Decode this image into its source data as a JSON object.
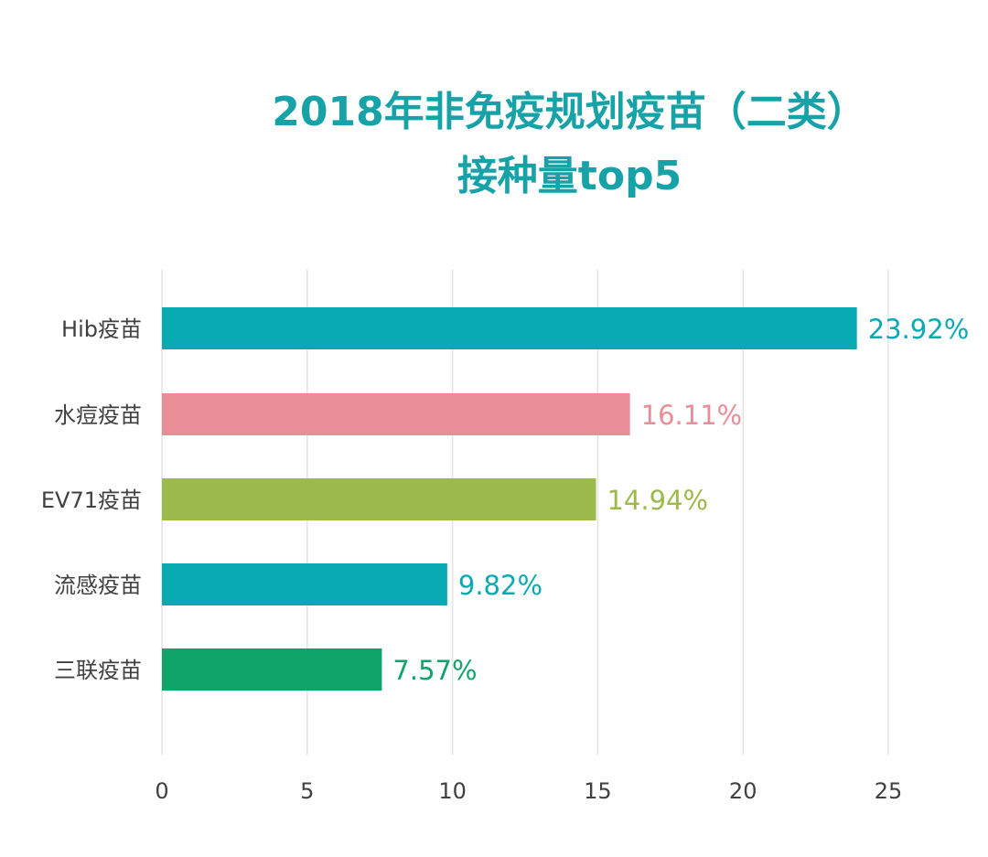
{
  "chart_data": {
    "type": "bar",
    "orientation": "horizontal",
    "title": "2018年非免疫规划疫苗（二类）",
    "subtitle": "接种量top5",
    "categories": [
      "Hib疫苗",
      "水痘疫苗",
      "EV71疫苗",
      "流感疫苗",
      "三联疫苗"
    ],
    "values": [
      23.92,
      16.11,
      14.94,
      9.82,
      7.57
    ],
    "value_labels": [
      "23.92%",
      "16.11%",
      "14.94%",
      "9.82%",
      "7.57%"
    ],
    "colors": [
      "#0aaab3",
      "#e98d96",
      "#9bba4b",
      "#0aaab3",
      "#10a468"
    ],
    "xlim": [
      0,
      25
    ],
    "xticks": [
      0,
      5,
      10,
      15,
      20,
      25
    ],
    "tick_labels": [
      "0",
      "5",
      "10",
      "15",
      "20",
      "25"
    ],
    "xlabel": "",
    "ylabel": "",
    "grid": "vertical",
    "legend": "none"
  },
  "colors": {
    "title": "#17a2a8",
    "grid": "#e3e3e3",
    "axis_text": "#404040"
  }
}
